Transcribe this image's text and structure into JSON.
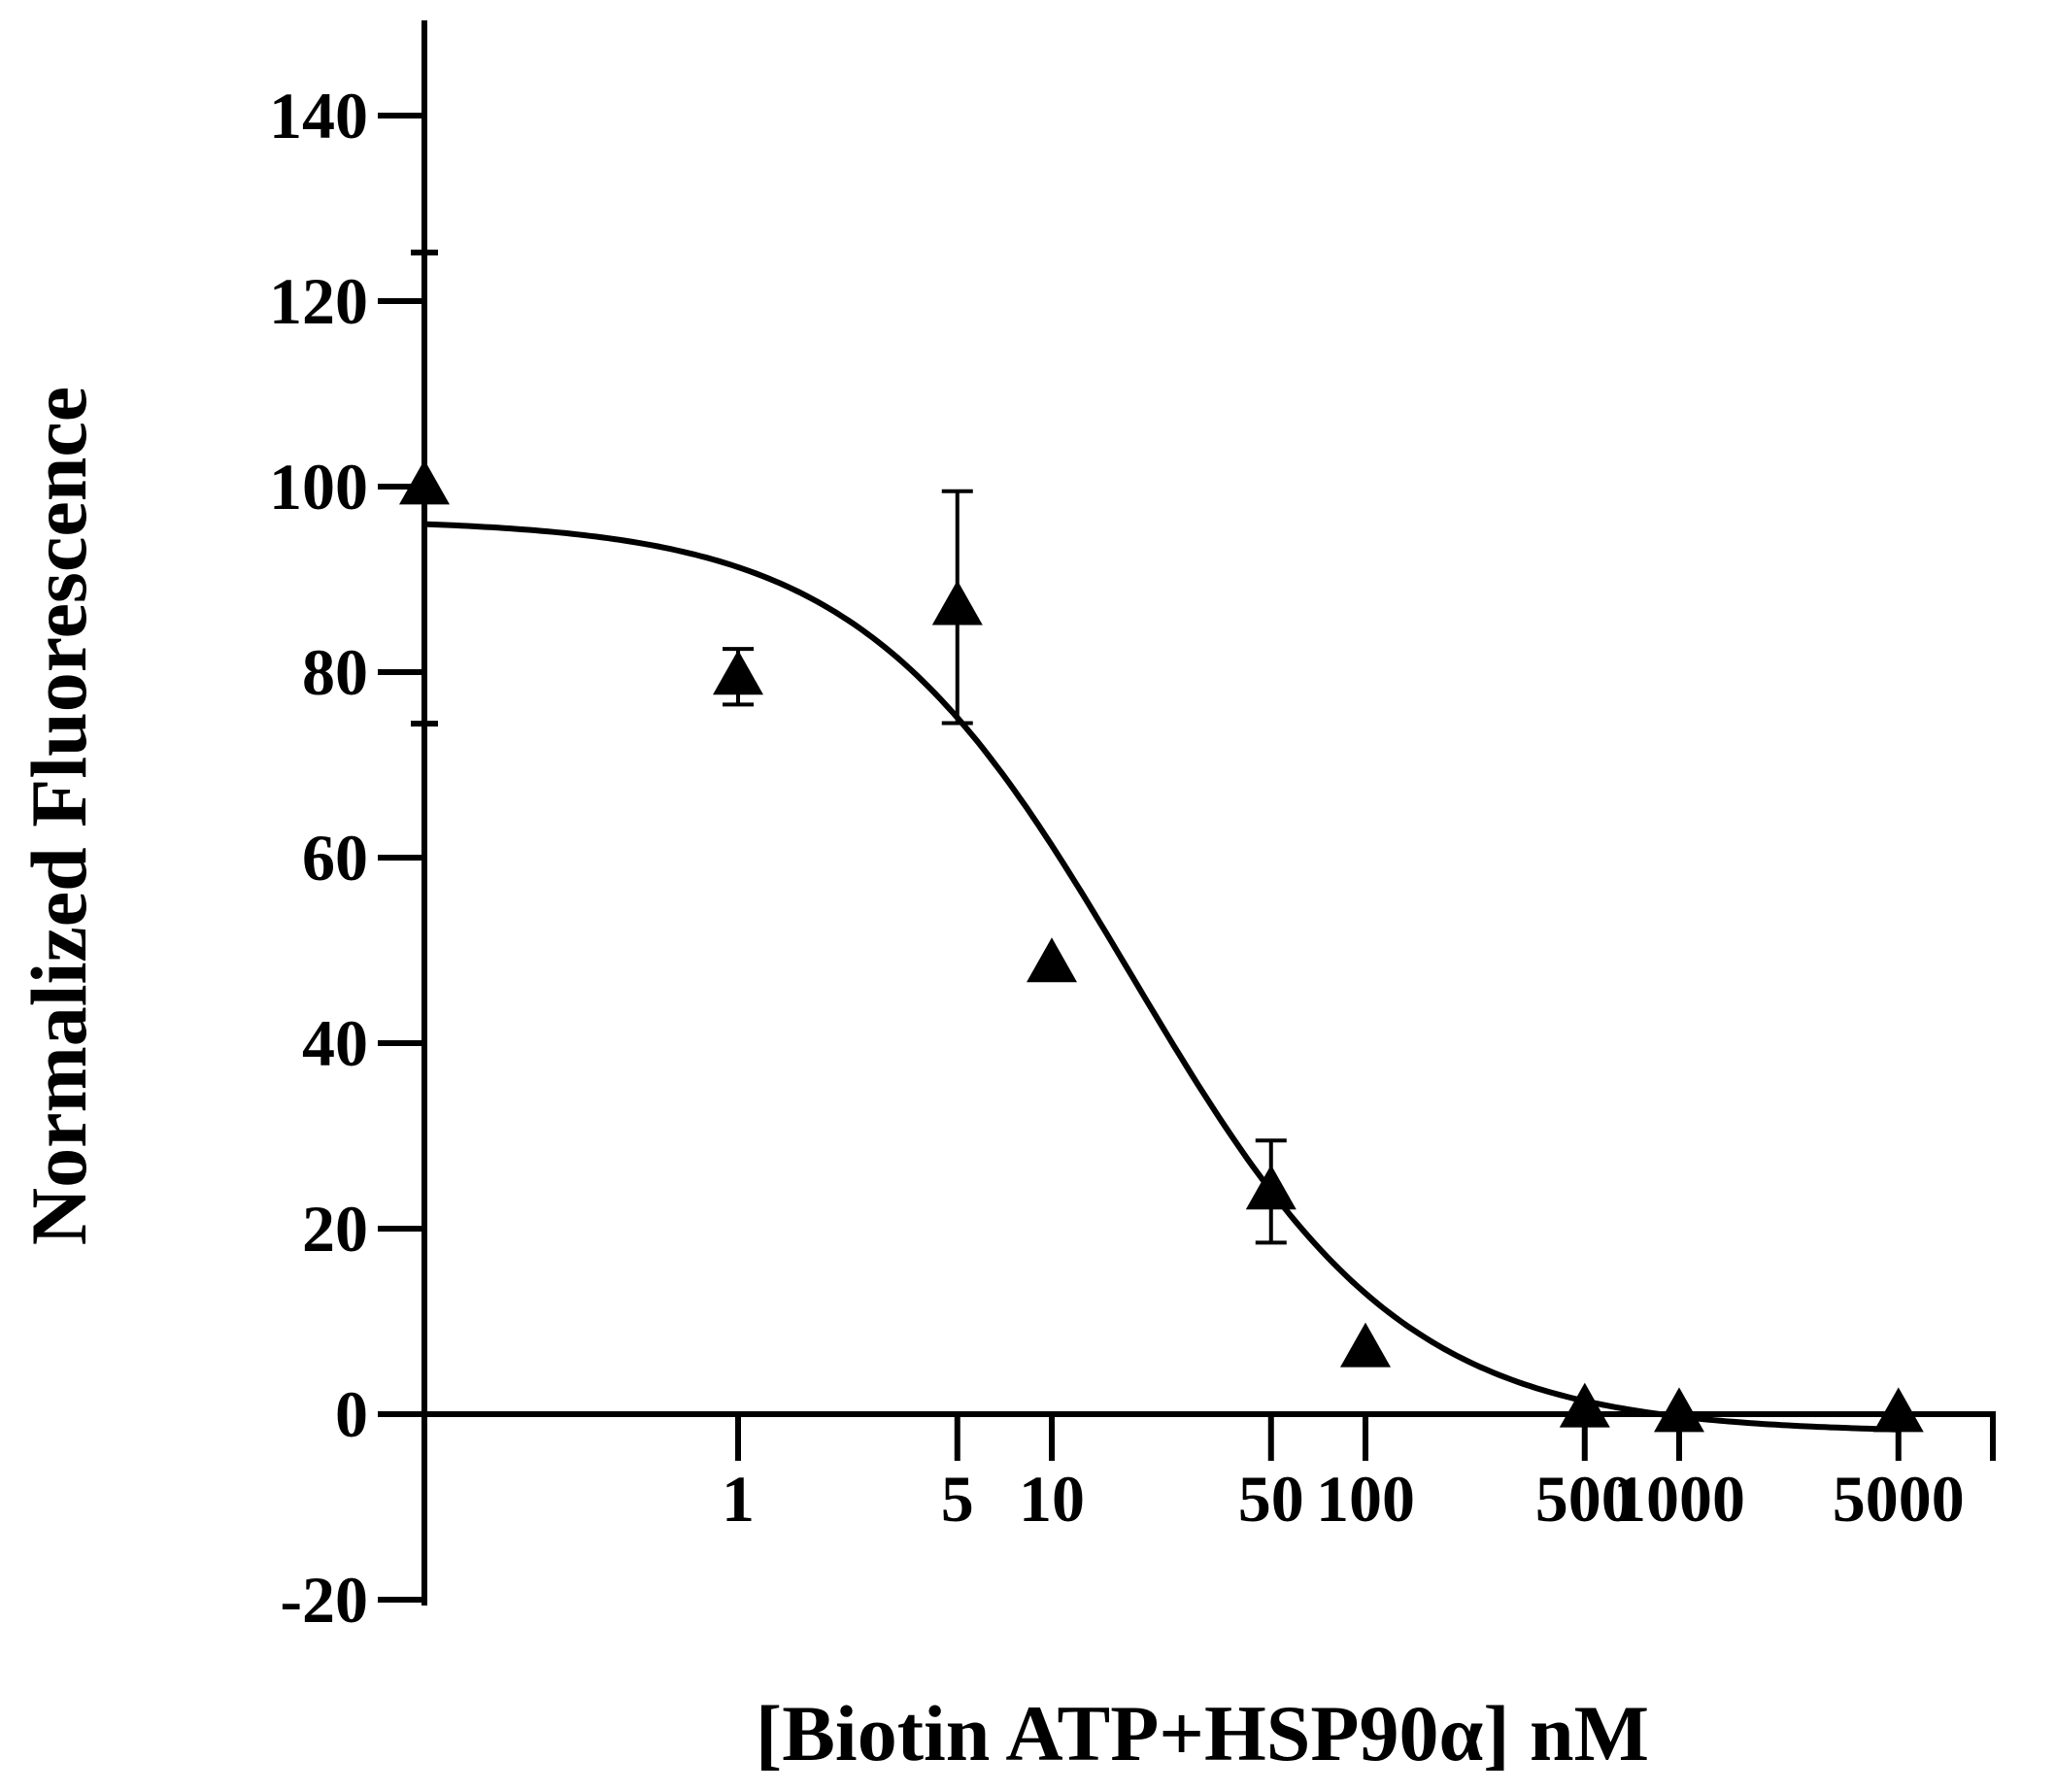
{
  "chart_data": {
    "type": "scatter",
    "xlabel": "[Biotin ATP+HSP90α] nM",
    "ylabel": "Normalized Fluorescence",
    "x_scale": "log",
    "y_ticks": [
      "140",
      "120",
      "100",
      "80",
      "60",
      "40",
      "20",
      "0",
      "-20"
    ],
    "x_ticks": [
      "1",
      "5",
      "10",
      "50",
      "100",
      "500",
      "1000",
      "5000"
    ],
    "ylim": [
      -20,
      150
    ],
    "grid": false,
    "series": [
      {
        "points": [
          {
            "x": 0.1,
            "y": 100,
            "err": 0
          },
          {
            "x": 1,
            "y": 79.5,
            "err": 3
          },
          {
            "x": 5,
            "y": 87,
            "err": 12.5
          },
          {
            "x": 10,
            "y": 48.5,
            "err": 0
          },
          {
            "x": 50,
            "y": 24,
            "err": 5.5
          },
          {
            "x": 100,
            "y": 7,
            "err": 0
          },
          {
            "x": 500,
            "y": 0.5,
            "err": 0
          },
          {
            "x": 1000,
            "y": 0,
            "err": 0
          },
          {
            "x": 5000,
            "y": 0,
            "err": 0
          }
        ]
      }
    ],
    "fit": {
      "type": "sigmoid",
      "top": 96.5,
      "bottom": -2,
      "ic50": 18,
      "hill": 1
    }
  },
  "style": {
    "color": "#000000"
  }
}
